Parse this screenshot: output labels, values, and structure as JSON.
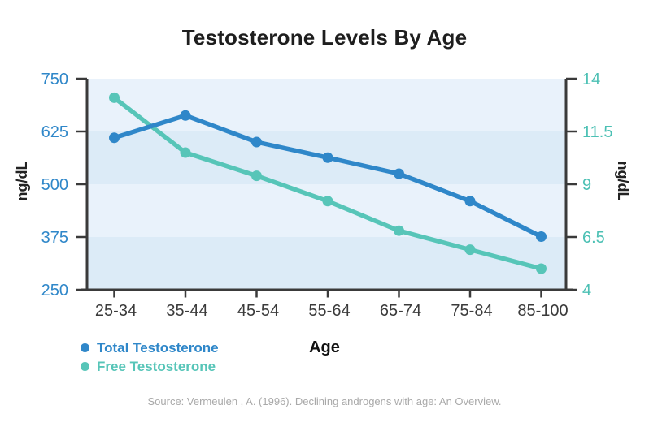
{
  "title": "Testosterone Levels By Age",
  "x_axis_label": "Age",
  "y_left_label": "ng/dL",
  "y_right_label": "ng/dL",
  "source_note": "Source: Vermeulen , A. (1996). Declining androgens with age: An Overview.",
  "colors": {
    "total_testosterone": "#2f87c9",
    "free_testosterone": "#57c5b8",
    "left_tick_labels": "#2f87c9",
    "right_tick_labels": "#4cc0b4",
    "axis_line": "#3a3a3a",
    "x_tick_labels": "#3b3b3b",
    "band_light": "#e9f2fb",
    "band_dark": "#dcebf7",
    "title_text": "#1e1e1e",
    "source_text": "#a9a9a9"
  },
  "legend": [
    {
      "label": "Total Testosterone",
      "color": "#2f87c9"
    },
    {
      "label": "Free Testosterone",
      "color": "#57c5b8"
    }
  ],
  "chart_data": {
    "type": "line",
    "title": "Testosterone Levels By Age",
    "xlabel": "Age",
    "categories": [
      "25-34",
      "35-44",
      "45-54",
      "55-64",
      "65-74",
      "75-84",
      "85-100"
    ],
    "series": [
      {
        "name": "Total Testosterone",
        "axis": "left",
        "color": "#2f87c9",
        "values": [
          610,
          663,
          600,
          563,
          525,
          460,
          376
        ]
      },
      {
        "name": "Free Testosterone",
        "axis": "right",
        "color": "#57c5b8",
        "values": [
          13.1,
          10.5,
          9.4,
          8.2,
          6.8,
          5.9,
          5.0
        ]
      }
    ],
    "y_left": {
      "label": "ng/dL",
      "ticks": [
        250,
        375,
        500,
        625,
        750
      ],
      "range": [
        250,
        750
      ]
    },
    "y_right": {
      "label": "ng/dL",
      "ticks": [
        4,
        6.5,
        9,
        11.5,
        14
      ],
      "range": [
        4,
        14
      ]
    },
    "grid": "alternating-horizontal-bands",
    "legend_position": "bottom-left",
    "markers": "filled-circles"
  }
}
